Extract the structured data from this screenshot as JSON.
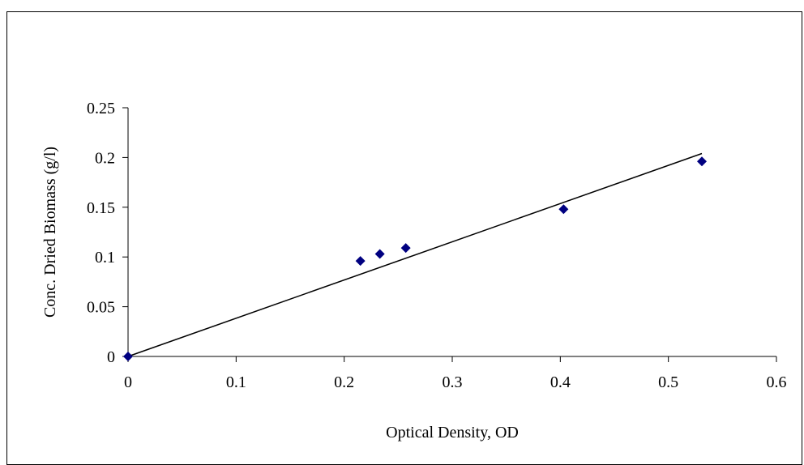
{
  "chart_data": {
    "type": "scatter",
    "title": "",
    "xlabel": "Optical Density, OD",
    "ylabel": "Conc. Dried Biomass (g/l)",
    "xlim": [
      0,
      0.6
    ],
    "ylim": [
      0,
      0.25
    ],
    "x_ticks": [
      "0",
      "0.1",
      "0.2",
      "0.3",
      "0.4",
      "0.5",
      "0.6"
    ],
    "y_ticks": [
      "0",
      "0.05",
      "0.1",
      "0.15",
      "0.2",
      "0.25"
    ],
    "grid": false,
    "legend": "none",
    "marker": "diamond",
    "marker_color": "#000080",
    "line_color": "#000000",
    "series": [
      {
        "x": [
          0,
          0.215,
          0.233,
          0.257,
          0.403,
          0.531
        ],
        "y": [
          0,
          0.096,
          0.103,
          0.109,
          0.148,
          0.196
        ]
      }
    ],
    "trendline": {
      "type": "linear",
      "x": [
        0,
        0.531
      ],
      "y": [
        0,
        0.204
      ]
    }
  }
}
